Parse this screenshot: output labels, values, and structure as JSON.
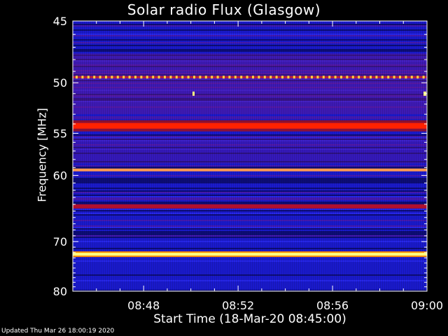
{
  "chart_data": {
    "type": "heatmap",
    "title": "Solar radio Flux (Glasgow)",
    "xlabel": "Start Time (18-Mar-20 08:45:00)",
    "ylabel": "Frequency [MHz]",
    "x_ticks": [
      "08:48",
      "08:52",
      "08:56",
      "09:00"
    ],
    "x_tick_minutes": [
      48,
      52,
      56,
      60
    ],
    "x_range_minutes": [
      45,
      60
    ],
    "y_ticks": [
      "45",
      "50",
      "55",
      "60",
      "70",
      "80"
    ],
    "y_tick_values": [
      45,
      50,
      55,
      60,
      70,
      80
    ],
    "y_range": [
      45,
      80
    ],
    "y_scale": "reciprocal",
    "bands": [
      {
        "freq": 49.5,
        "intensity": "dotted-yellow"
      },
      {
        "freq": 54.2,
        "intensity": "red"
      },
      {
        "freq": 59.3,
        "intensity": "orange"
      },
      {
        "freq": 64.3,
        "intensity": "dark-red"
      },
      {
        "freq": 72.3,
        "intensity": "yellow"
      }
    ],
    "colors": {
      "background": "#1a1acc",
      "low": "#0a0a60",
      "mid": "#6a1a9a",
      "high": "#ff2200",
      "peak": "#ffff80"
    }
  },
  "footer": {
    "updated": "Updated Thu Mar 26 18:00:19 2020"
  }
}
